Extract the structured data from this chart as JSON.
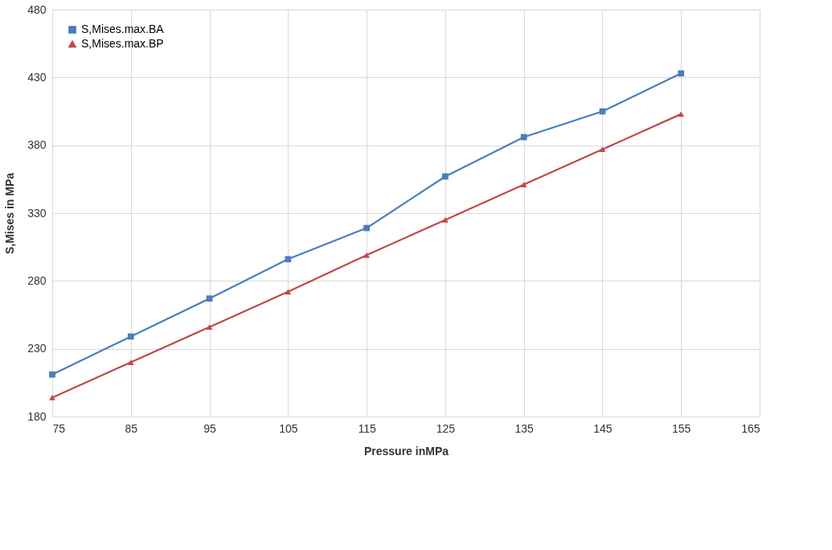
{
  "chart_data": {
    "type": "line",
    "xlabel": "Pressure inMPa",
    "ylabel": "S,Mises in MPa",
    "x": [
      75,
      85,
      95,
      105,
      115,
      125,
      135,
      145,
      155
    ],
    "series": [
      {
        "name": "S,Mises.max.BA",
        "color": "#4a7ebb",
        "marker": "square",
        "values": [
          211,
          239,
          267,
          296,
          319,
          357,
          386,
          405,
          433
        ]
      },
      {
        "name": "S,Mises.max.BP",
        "color": "#be4b48",
        "marker": "triangle",
        "values": [
          194,
          220,
          246,
          272,
          299,
          325,
          351,
          377,
          403
        ]
      }
    ],
    "xlim": [
      75,
      165
    ],
    "xticks": [
      75,
      85,
      95,
      105,
      115,
      125,
      135,
      145,
      155,
      165
    ],
    "ylim": [
      180,
      480
    ],
    "yticks": [
      180,
      230,
      280,
      330,
      380,
      430,
      480
    ],
    "grid": true,
    "legend": "top left",
    "line_style": "solid"
  }
}
